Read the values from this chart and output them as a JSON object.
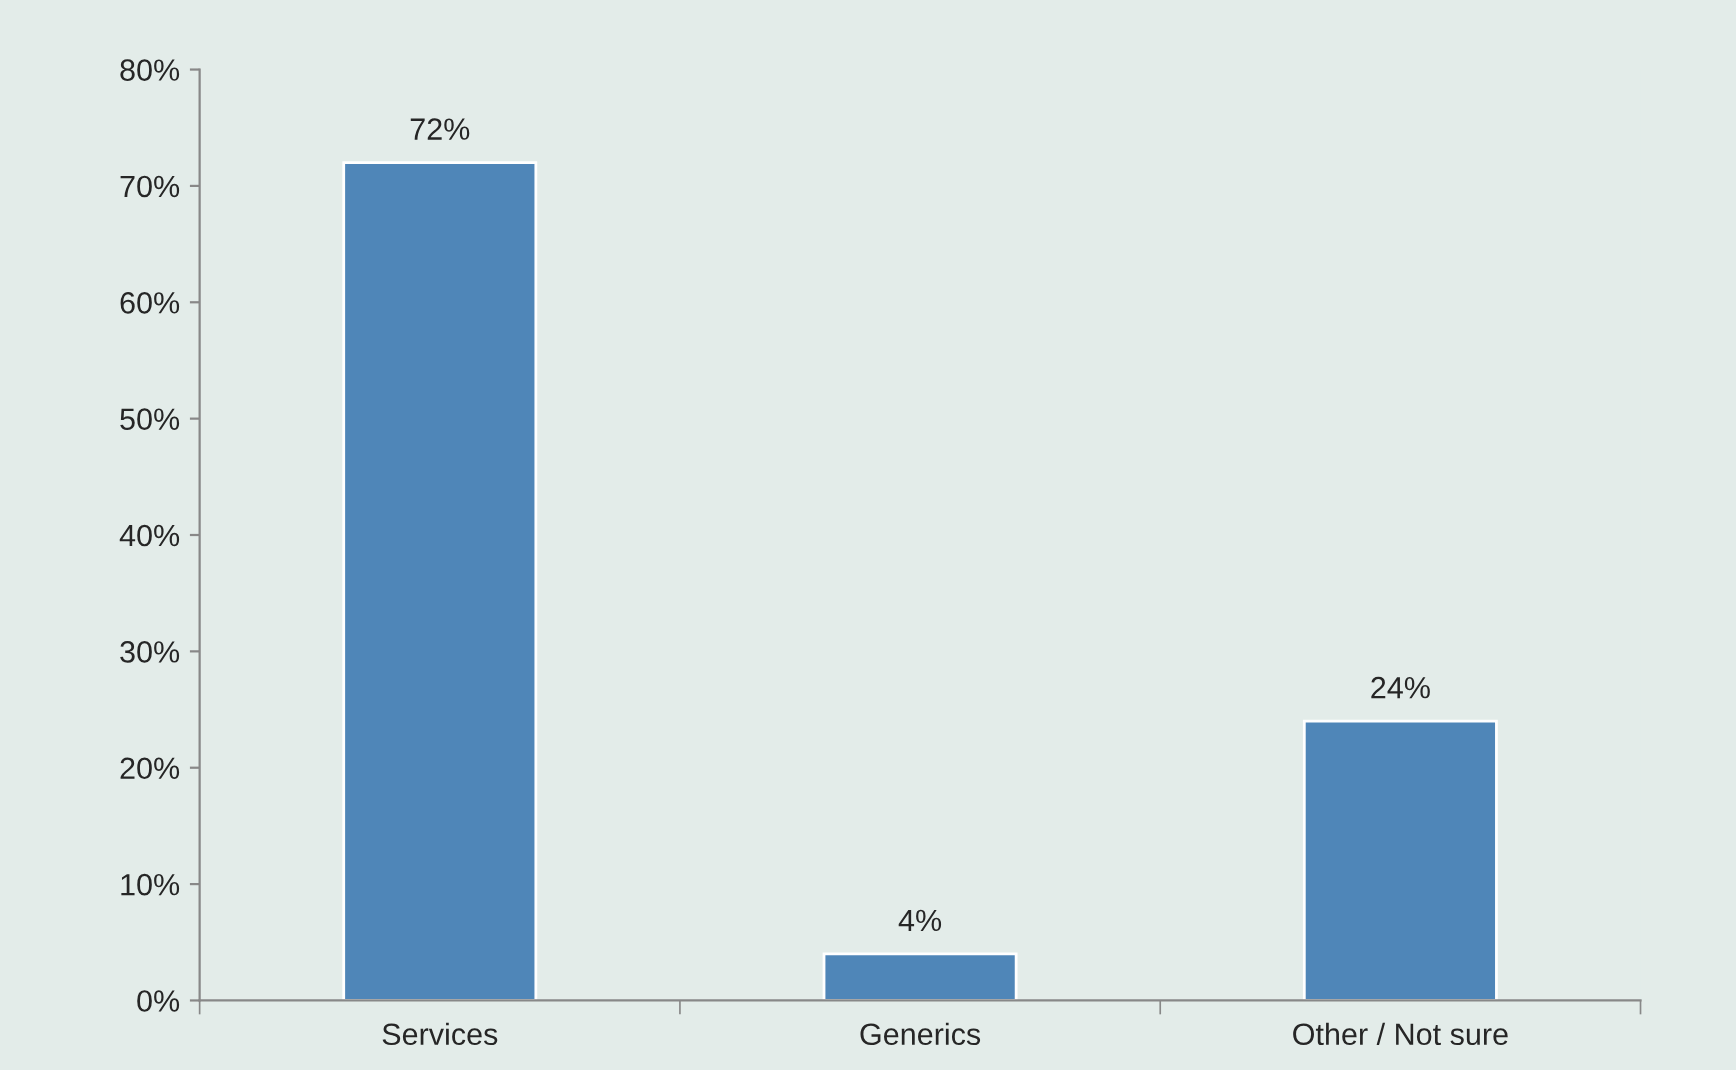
{
  "chart_data": {
    "type": "bar",
    "categories": [
      "Services",
      "Generics",
      "Other / Not sure"
    ],
    "values": [
      72,
      4,
      24
    ],
    "value_labels": [
      "72%",
      "4%",
      "24%"
    ],
    "color": "#4f86b8",
    "ylim": [
      0,
      80
    ],
    "yticks": [
      {
        "value": 0,
        "label": "0%"
      },
      {
        "value": 10,
        "label": "10%"
      },
      {
        "value": 20,
        "label": "20%"
      },
      {
        "value": 30,
        "label": "30%"
      },
      {
        "value": 40,
        "label": "40%"
      },
      {
        "value": 50,
        "label": "50%"
      },
      {
        "value": 60,
        "label": "60%"
      },
      {
        "value": 70,
        "label": "70%"
      },
      {
        "value": 80,
        "label": "80%"
      }
    ],
    "grid": false,
    "legend": false
  }
}
